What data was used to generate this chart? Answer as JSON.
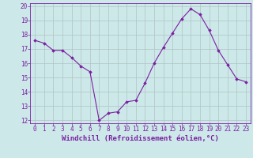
{
  "x": [
    0,
    1,
    2,
    3,
    4,
    5,
    6,
    7,
    8,
    9,
    10,
    11,
    12,
    13,
    14,
    15,
    16,
    17,
    18,
    19,
    20,
    21,
    22,
    23
  ],
  "y": [
    17.6,
    17.4,
    16.9,
    16.9,
    16.4,
    15.8,
    15.4,
    12.0,
    12.5,
    12.6,
    13.3,
    13.4,
    14.6,
    16.0,
    17.1,
    18.1,
    19.1,
    19.8,
    19.4,
    18.3,
    16.9,
    15.9,
    14.9,
    14.7
  ],
  "line_color": "#7b1fa2",
  "marker_color": "#7b1fa2",
  "bg_color": "#cce8e8",
  "grid_color": "#b0c4c4",
  "xlabel": "Windchill (Refroidissement éolien,°C)",
  "xlim": [
    -0.5,
    23.5
  ],
  "ylim": [
    11.8,
    20.2
  ],
  "xticks": [
    0,
    1,
    2,
    3,
    4,
    5,
    6,
    7,
    8,
    9,
    10,
    11,
    12,
    13,
    14,
    15,
    16,
    17,
    18,
    19,
    20,
    21,
    22,
    23
  ],
  "yticks": [
    12,
    13,
    14,
    15,
    16,
    17,
    18,
    19,
    20
  ],
  "tick_fontsize": 5.5,
  "xlabel_fontsize": 6.5
}
